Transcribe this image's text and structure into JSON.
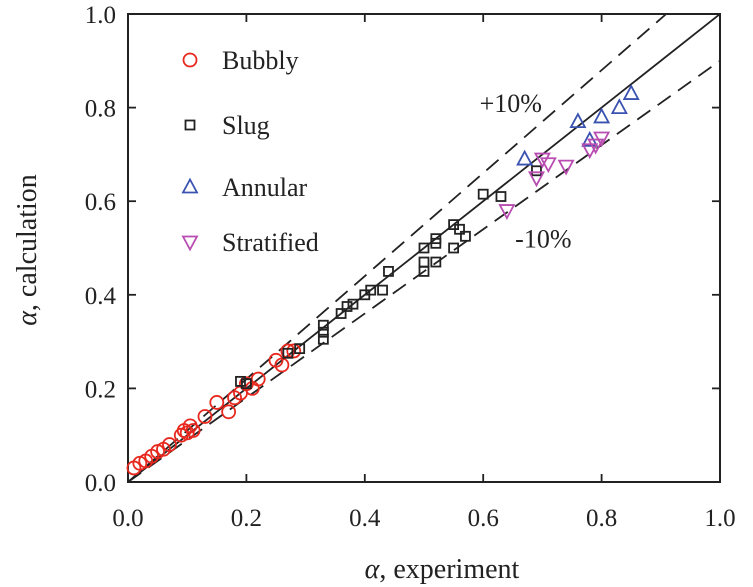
{
  "chart_data": {
    "type": "scatter",
    "title": "",
    "xlabel": "α, experiment",
    "ylabel": "α, calculation",
    "xlabel_symbol": "α",
    "xlabel_rest": ", experiment",
    "ylabel_symbol": "α",
    "ylabel_rest": ", calculation",
    "xlim": [
      0.0,
      1.0
    ],
    "ylim": [
      0.0,
      1.0
    ],
    "xticks": [
      0.0,
      0.2,
      0.4,
      0.6,
      0.8,
      1.0
    ],
    "yticks": [
      0.0,
      0.2,
      0.4,
      0.6,
      0.8,
      1.0
    ],
    "xtick_labels": [
      "0.0",
      "0.2",
      "0.4",
      "0.6",
      "0.8",
      "1.0"
    ],
    "ytick_labels": [
      "0.0",
      "0.2",
      "0.4",
      "0.6",
      "0.8",
      "1.0"
    ],
    "grid": false,
    "legend_position": "top-left",
    "reference_lines": [
      {
        "name": "y = x",
        "slope": 1.0,
        "style": "solid"
      },
      {
        "name": "+10%",
        "slope": 1.1,
        "style": "dashed"
      },
      {
        "name": "-10%",
        "slope": 0.9,
        "style": "dashed"
      }
    ],
    "annotations": [
      {
        "text": "+10%",
        "x": 0.67,
        "y": 0.81
      },
      {
        "text": "-10%",
        "x": 0.73,
        "y": 0.52
      }
    ],
    "series": [
      {
        "name": "Bubbly",
        "marker": "circle",
        "color": "#e8281e",
        "points": [
          [
            0.01,
            0.03
          ],
          [
            0.02,
            0.04
          ],
          [
            0.03,
            0.045
          ],
          [
            0.04,
            0.055
          ],
          [
            0.05,
            0.065
          ],
          [
            0.06,
            0.07
          ],
          [
            0.07,
            0.08
          ],
          [
            0.09,
            0.1
          ],
          [
            0.095,
            0.11
          ],
          [
            0.1,
            0.105
          ],
          [
            0.105,
            0.12
          ],
          [
            0.11,
            0.11
          ],
          [
            0.13,
            0.14
          ],
          [
            0.15,
            0.17
          ],
          [
            0.17,
            0.15
          ],
          [
            0.18,
            0.18
          ],
          [
            0.19,
            0.19
          ],
          [
            0.2,
            0.21
          ],
          [
            0.21,
            0.2
          ],
          [
            0.22,
            0.22
          ],
          [
            0.25,
            0.26
          ],
          [
            0.26,
            0.25
          ],
          [
            0.27,
            0.28
          ],
          [
            0.28,
            0.28
          ]
        ]
      },
      {
        "name": "Slug",
        "marker": "square",
        "color": "#222222",
        "points": [
          [
            0.19,
            0.215
          ],
          [
            0.2,
            0.21
          ],
          [
            0.27,
            0.275
          ],
          [
            0.29,
            0.285
          ],
          [
            0.33,
            0.32
          ],
          [
            0.33,
            0.305
          ],
          [
            0.33,
            0.335
          ],
          [
            0.36,
            0.36
          ],
          [
            0.37,
            0.375
          ],
          [
            0.38,
            0.38
          ],
          [
            0.4,
            0.4
          ],
          [
            0.41,
            0.41
          ],
          [
            0.43,
            0.41
          ],
          [
            0.44,
            0.45
          ],
          [
            0.5,
            0.45
          ],
          [
            0.5,
            0.47
          ],
          [
            0.5,
            0.5
          ],
          [
            0.52,
            0.47
          ],
          [
            0.52,
            0.51
          ],
          [
            0.52,
            0.52
          ],
          [
            0.55,
            0.5
          ],
          [
            0.55,
            0.55
          ],
          [
            0.56,
            0.54
          ],
          [
            0.57,
            0.525
          ],
          [
            0.6,
            0.615
          ],
          [
            0.63,
            0.61
          ],
          [
            0.69,
            0.665
          ]
        ]
      },
      {
        "name": "Annular",
        "marker": "triangle-up",
        "color": "#3a52b0",
        "points": [
          [
            0.67,
            0.69
          ],
          [
            0.76,
            0.77
          ],
          [
            0.78,
            0.73
          ],
          [
            0.8,
            0.78
          ],
          [
            0.83,
            0.8
          ],
          [
            0.85,
            0.83
          ]
        ]
      },
      {
        "name": "Stratified",
        "marker": "triangle-down",
        "color": "#b84cb0",
        "points": [
          [
            0.64,
            0.58
          ],
          [
            0.69,
            0.65
          ],
          [
            0.7,
            0.69
          ],
          [
            0.71,
            0.68
          ],
          [
            0.74,
            0.675
          ],
          [
            0.78,
            0.71
          ],
          [
            0.79,
            0.72
          ],
          [
            0.8,
            0.735
          ]
        ]
      }
    ]
  }
}
